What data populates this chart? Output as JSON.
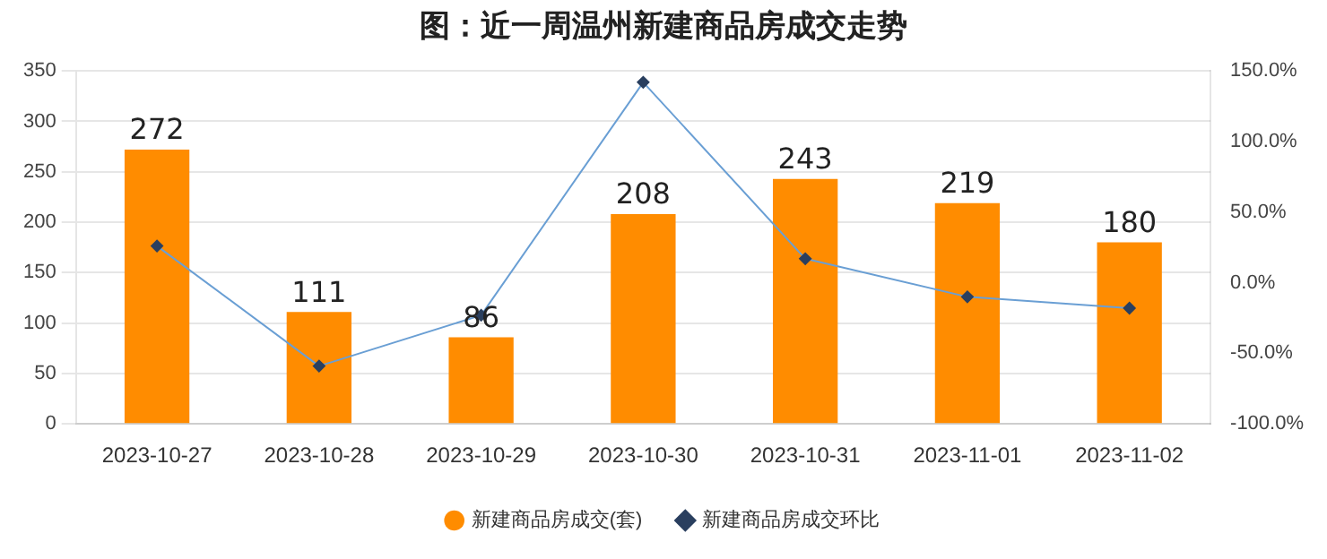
{
  "chart_data": {
    "type": "bar",
    "title": "图：近一周温州新建商品房成交走势",
    "categories": [
      "2023-10-27",
      "2023-10-28",
      "2023-10-29",
      "2023-10-30",
      "2023-10-31",
      "2023-11-01",
      "2023-11-02"
    ],
    "series": [
      {
        "name": "新建商品房成交(套)",
        "color": "#ff8c00",
        "values": [
          272,
          111,
          86,
          208,
          243,
          219,
          180
        ],
        "value_labels": [
          "272",
          "111",
          "86",
          "208",
          "243",
          "219",
          "180"
        ]
      },
      {
        "name": "新建商品房成交环比",
        "type": "line",
        "axis": "y2",
        "color": "#6a9fd4",
        "marker": "diamond",
        "values": [
          26,
          -59,
          -23,
          142,
          17,
          -10,
          -18
        ]
      }
    ],
    "ylim": [
      0,
      350
    ],
    "yticks": [
      0,
      50,
      100,
      150,
      200,
      250,
      300,
      350
    ],
    "y2lim": [
      -100,
      150
    ],
    "y2ticks": [
      {
        "value": -100,
        "label": "-100.0%"
      },
      {
        "value": -50,
        "label": "-50.0%"
      },
      {
        "value": 0,
        "label": "0.0%"
      },
      {
        "value": 50,
        "label": "50.0%"
      },
      {
        "value": 100,
        "label": "100.0%"
      },
      {
        "value": 150,
        "label": "150.0%"
      }
    ],
    "grid": "y",
    "legend": "bottom"
  }
}
